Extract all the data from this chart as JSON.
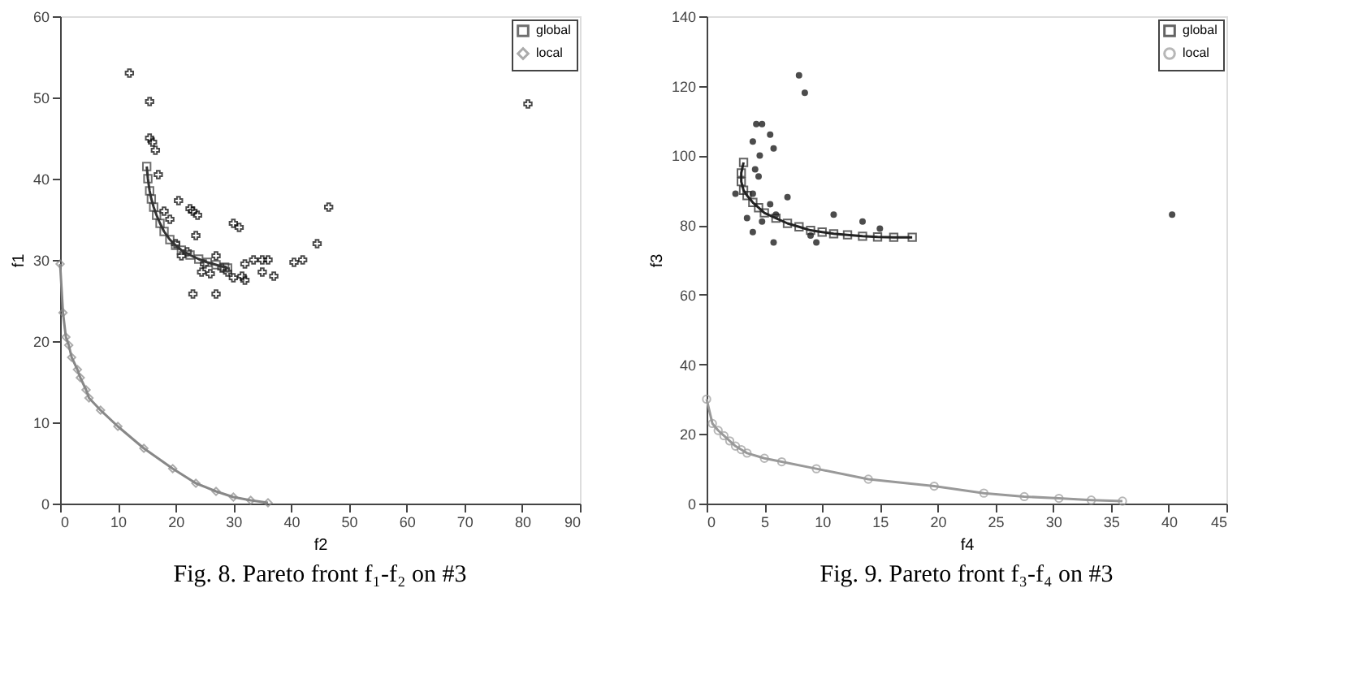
{
  "chart_data": [
    {
      "type": "line",
      "title": "Fig. 8. Pareto front f₁-f₂ on #3",
      "xlabel": "f2",
      "ylabel": "f1",
      "xlim": [
        0,
        90
      ],
      "ylim": [
        0,
        60
      ],
      "xticks": [
        0,
        10,
        20,
        30,
        40,
        50,
        60,
        70,
        80,
        90
      ],
      "yticks": [
        0,
        10,
        20,
        30,
        40,
        50,
        60
      ],
      "grid": false,
      "legend": "top right",
      "series": [
        {
          "type": "scatter",
          "marker": "cross",
          "color": "#000000",
          "x": [
            12,
            15.5,
            15.5,
            16,
            16.5,
            81,
            46.5,
            20.5,
            22.5,
            23,
            23.8,
            23.5,
            30,
            31,
            44.5,
            42,
            40.5,
            37,
            36,
            35,
            33.5,
            35,
            32,
            31.5,
            30,
            23,
            27,
            26,
            24.5,
            27,
            18,
            19,
            17,
            20,
            22,
            25,
            28,
            29,
            21,
            32
          ],
          "values": [
            53,
            49.5,
            45,
            44.5,
            43.5,
            49.2,
            36.5,
            37.3,
            36.3,
            36,
            35.5,
            33,
            34.5,
            34,
            32,
            30,
            29.7,
            28,
            30,
            30,
            30,
            28.5,
            29.5,
            28,
            27.8,
            25.8,
            25.8,
            28.3,
            28.5,
            30.5,
            36,
            35,
            40.5,
            32,
            31,
            29.5,
            29,
            28.5,
            30.5,
            27.5
          ]
        },
        {
          "name": "global",
          "marker": "square",
          "color": "#333333",
          "x": [
            15,
            15.2,
            15.5,
            15.8,
            16.2,
            16.7,
            17.3,
            18,
            19,
            20,
            21,
            22.5,
            24,
            25.5,
            27,
            28.5,
            29
          ],
          "values": [
            41.5,
            40,
            38.5,
            37.5,
            36.5,
            35.5,
            34.5,
            33.5,
            32.5,
            31.8,
            31.2,
            30.6,
            30.1,
            29.7,
            29.4,
            29.1,
            29
          ]
        },
        {
          "name": "local",
          "marker": "diamond",
          "color": "#888888",
          "x": [
            0,
            0.5,
            1,
            1.5,
            2,
            3,
            3.5,
            4.5,
            5,
            7,
            10,
            14.5,
            19.5,
            23.5,
            27,
            30,
            33,
            36
          ],
          "values": [
            29.5,
            23.5,
            20.5,
            19.5,
            18,
            16.5,
            15.5,
            14,
            13,
            11.5,
            9.5,
            6.8,
            4.3,
            2.5,
            1.5,
            0.8,
            0.4,
            0.1
          ]
        }
      ]
    },
    {
      "type": "line",
      "title": "Fig. 9. Pareto front f₃-f₄ on #3",
      "xlabel": "f4",
      "ylabel": "f3",
      "xlim": [
        0,
        45
      ],
      "ylim": [
        0,
        140
      ],
      "xticks": [
        0,
        5,
        10,
        15,
        20,
        25,
        30,
        35,
        40,
        45
      ],
      "yticks": [
        0,
        20,
        40,
        60,
        80,
        100,
        120,
        140
      ],
      "grid": false,
      "legend": "top right",
      "series": [
        {
          "type": "scatter",
          "marker": "circle",
          "color": "#000000",
          "x": [
            8,
            8.5,
            4.3,
            4.8,
            5.5,
            5.8,
            4,
            4.6,
            4.2,
            4.5,
            4,
            3.5,
            4,
            5.5,
            7,
            5.8,
            9,
            9.5,
            11,
            13.5,
            15,
            6,
            2.5,
            40.3,
            4.8
          ],
          "values": [
            123,
            118,
            109,
            109,
            106,
            102,
            104,
            100,
            96,
            94,
            89,
            82,
            78,
            86,
            88,
            75,
            77,
            75,
            83,
            81,
            79,
            83,
            89,
            83,
            81
          ]
        },
        {
          "name": "global",
          "marker": "square",
          "color": "#222222",
          "x": [
            3.2,
            3,
            3,
            3.2,
            3.5,
            4,
            4.5,
            5,
            6,
            7,
            8,
            9,
            10,
            11,
            12.2,
            13.5,
            14.8,
            16.2,
            17.8
          ],
          "values": [
            98,
            95,
            92.5,
            90,
            88.5,
            86.5,
            85,
            83.5,
            82,
            80.5,
            79.5,
            78.5,
            78,
            77.5,
            77.2,
            76.8,
            76.6,
            76.5,
            76.5
          ]
        },
        {
          "name": "local",
          "marker": "circle",
          "color": "#999999",
          "x": [
            0,
            0.5,
            1,
            1.5,
            2,
            2.5,
            3,
            3.5,
            5,
            6.5,
            9.5,
            14,
            19.7,
            24,
            27.5,
            30.5,
            33.3,
            36
          ],
          "values": [
            30,
            23,
            21,
            19.5,
            18,
            16.5,
            15.5,
            14.5,
            13,
            12,
            10,
            7,
            5,
            3,
            2,
            1.5,
            1,
            0.7
          ]
        }
      ]
    }
  ]
}
